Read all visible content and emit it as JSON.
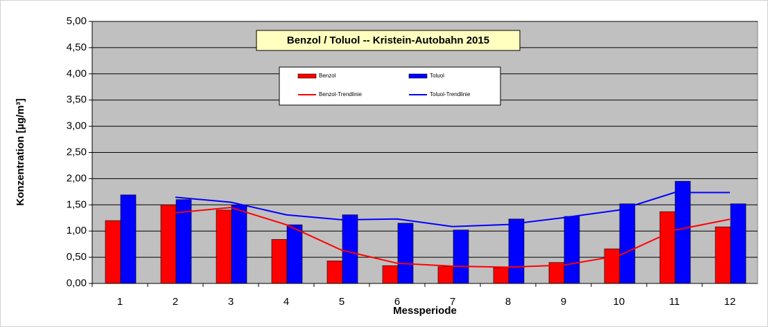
{
  "chart_data": {
    "type": "bar",
    "title": "Benzol / Toluol -- Kristein-Autobahn 2015",
    "xlabel": "Messperiode",
    "ylabel": "Konzentration [µg/m³]",
    "categories": [
      "1",
      "2",
      "3",
      "4",
      "5",
      "6",
      "7",
      "8",
      "9",
      "10",
      "11",
      "12"
    ],
    "series": [
      {
        "name": "Benzol",
        "color": "#ff0000",
        "values": [
          1.2,
          1.5,
          1.4,
          0.84,
          0.43,
          0.34,
          0.32,
          0.3,
          0.4,
          0.66,
          1.37,
          1.08
        ]
      },
      {
        "name": "Toluol",
        "color": "#0000ff",
        "values": [
          1.69,
          1.6,
          1.5,
          1.12,
          1.31,
          1.15,
          1.02,
          1.23,
          1.28,
          1.52,
          1.95,
          1.52
        ]
      }
    ],
    "trendlines": [
      {
        "name": "Benzol-Trendlinie",
        "color": "#ff0000",
        "values": [
          null,
          1.35,
          1.45,
          1.12,
          0.635,
          0.385,
          0.33,
          0.31,
          0.35,
          0.53,
          1.015,
          1.225
        ]
      },
      {
        "name": "Toluol-Trendlinie",
        "color": "#0000ff",
        "values": [
          null,
          1.645,
          1.55,
          1.31,
          1.215,
          1.23,
          1.085,
          1.125,
          1.255,
          1.4,
          1.735,
          1.735
        ]
      }
    ],
    "ylim": [
      0,
      5
    ],
    "yticks": [
      {
        "value": 0,
        "label": "0,00"
      },
      {
        "value": 0.5,
        "label": "0,50"
      },
      {
        "value": 1,
        "label": "1,00"
      },
      {
        "value": 1.5,
        "label": "1,50"
      },
      {
        "value": 2,
        "label": "2,00"
      },
      {
        "value": 2.5,
        "label": "2,50"
      },
      {
        "value": 3,
        "label": "3,00"
      },
      {
        "value": 3.5,
        "label": "3,50"
      },
      {
        "value": 4,
        "label": "4,00"
      },
      {
        "value": 4.5,
        "label": "4,50"
      },
      {
        "value": 5,
        "label": "5,00"
      }
    ],
    "grid": true
  }
}
